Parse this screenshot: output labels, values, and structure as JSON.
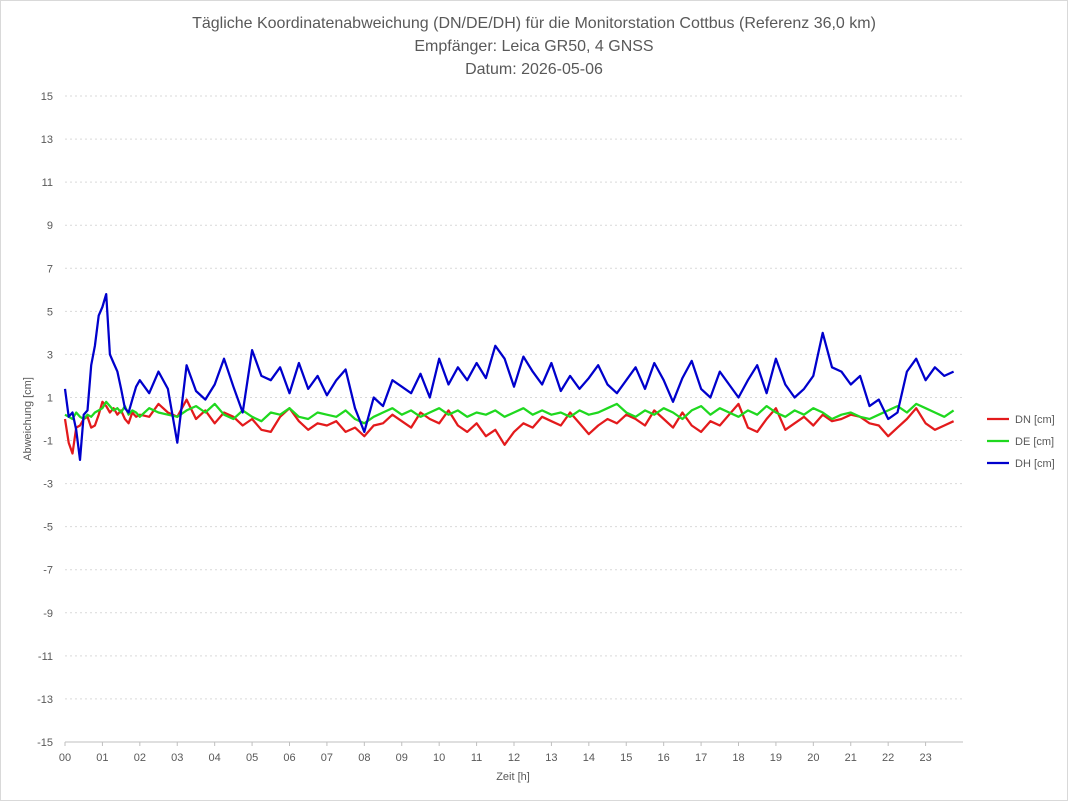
{
  "chart_data": {
    "type": "line",
    "title": [
      "Tägliche Koordinatenabweichung (DN/DE/DH) für die Monitorstation Cottbus (Referenz 36,0 km)",
      "Empfänger: Leica GR50, 4 GNSS",
      "Datum: 2026-05-06"
    ],
    "xlabel": "Zeit [h]",
    "ylabel": "Abweichung [cm]",
    "xlim": [
      0,
      24
    ],
    "ylim": [
      -15,
      15
    ],
    "x_ticks": [
      "00",
      "01",
      "02",
      "03",
      "04",
      "05",
      "06",
      "07",
      "08",
      "09",
      "10",
      "11",
      "12",
      "13",
      "14",
      "15",
      "16",
      "17",
      "18",
      "19",
      "20",
      "21",
      "22",
      "23"
    ],
    "y_ticks": [
      "15",
      "13",
      "11",
      "9",
      "7",
      "5",
      "3",
      "1",
      "-1",
      "-3",
      "-5",
      "-7",
      "-9",
      "-11",
      "-13",
      "-15"
    ],
    "grid": true,
    "legend_position": "right",
    "x_hours": [
      0.0,
      0.1,
      0.2,
      0.3,
      0.4,
      0.5,
      0.6,
      0.7,
      0.8,
      0.9,
      1.0,
      1.1,
      1.2,
      1.3,
      1.4,
      1.5,
      1.6,
      1.7,
      1.8,
      1.9,
      2.0,
      2.25,
      2.5,
      2.75,
      3.0,
      3.25,
      3.5,
      3.75,
      4.0,
      4.25,
      4.5,
      4.75,
      5.0,
      5.25,
      5.5,
      5.75,
      6.0,
      6.25,
      6.5,
      6.75,
      7.0,
      7.25,
      7.5,
      7.75,
      8.0,
      8.25,
      8.5,
      8.75,
      9.0,
      9.25,
      9.5,
      9.75,
      10.0,
      10.25,
      10.5,
      10.75,
      11.0,
      11.25,
      11.5,
      11.75,
      12.0,
      12.25,
      12.5,
      12.75,
      13.0,
      13.25,
      13.5,
      13.75,
      14.0,
      14.25,
      14.5,
      14.75,
      15.0,
      15.25,
      15.5,
      15.75,
      16.0,
      16.25,
      16.5,
      16.75,
      17.0,
      17.25,
      17.5,
      17.75,
      18.0,
      18.25,
      18.5,
      18.75,
      19.0,
      19.25,
      19.5,
      19.75,
      20.0,
      20.25,
      20.5,
      20.75,
      21.0,
      21.25,
      21.5,
      21.75,
      22.0,
      22.25,
      22.5,
      22.75,
      23.0,
      23.25,
      23.5,
      23.75
    ],
    "series": [
      {
        "name": "DN [cm]",
        "color": "#e31a1c",
        "values": [
          0.0,
          -1.1,
          -1.6,
          -0.4,
          -0.3,
          0.0,
          0.1,
          -0.4,
          -0.3,
          0.2,
          0.8,
          0.6,
          0.3,
          0.5,
          0.2,
          0.4,
          0.0,
          -0.2,
          0.3,
          0.1,
          0.2,
          0.1,
          0.7,
          0.3,
          0.1,
          0.9,
          0.0,
          0.4,
          -0.2,
          0.3,
          0.1,
          -0.3,
          0.0,
          -0.5,
          -0.6,
          0.1,
          0.5,
          -0.1,
          -0.5,
          -0.2,
          -0.3,
          -0.1,
          -0.6,
          -0.4,
          -0.8,
          -0.3,
          -0.2,
          0.2,
          -0.1,
          -0.4,
          0.3,
          0.0,
          -0.2,
          0.4,
          -0.3,
          -0.6,
          -0.2,
          -0.8,
          -0.5,
          -1.2,
          -0.6,
          -0.2,
          -0.4,
          0.1,
          -0.1,
          -0.3,
          0.3,
          -0.2,
          -0.7,
          -0.3,
          0.0,
          -0.2,
          0.2,
          0.0,
          -0.3,
          0.4,
          0.0,
          -0.4,
          0.3,
          -0.3,
          -0.6,
          -0.1,
          -0.3,
          0.2,
          0.7,
          -0.4,
          -0.6,
          0.0,
          0.5,
          -0.5,
          -0.2,
          0.1,
          -0.3,
          0.2,
          -0.1,
          0.0,
          0.2,
          0.1,
          -0.2,
          -0.3,
          -0.8,
          -0.4,
          0.0,
          0.5,
          -0.2,
          -0.5,
          -0.3,
          -0.1
        ]
      },
      {
        "name": "DE [cm]",
        "color": "#1fd81f",
        "values": [
          0.2,
          0.1,
          0.0,
          0.3,
          0.1,
          0.0,
          0.2,
          0.1,
          0.3,
          0.4,
          0.5,
          0.8,
          0.6,
          0.4,
          0.5,
          0.3,
          0.6,
          0.2,
          0.4,
          0.3,
          0.1,
          0.5,
          0.3,
          0.2,
          0.1,
          0.4,
          0.6,
          0.3,
          0.7,
          0.2,
          0.0,
          0.4,
          0.1,
          -0.1,
          0.3,
          0.2,
          0.5,
          0.1,
          0.0,
          0.3,
          0.2,
          0.1,
          0.4,
          0.0,
          -0.2,
          0.1,
          0.3,
          0.5,
          0.2,
          0.4,
          0.1,
          0.3,
          0.5,
          0.2,
          0.4,
          0.1,
          0.3,
          0.2,
          0.4,
          0.1,
          0.3,
          0.5,
          0.2,
          0.4,
          0.2,
          0.3,
          0.1,
          0.4,
          0.2,
          0.3,
          0.5,
          0.7,
          0.3,
          0.1,
          0.4,
          0.2,
          0.5,
          0.3,
          0.0,
          0.4,
          0.6,
          0.2,
          0.5,
          0.3,
          0.1,
          0.4,
          0.2,
          0.6,
          0.3,
          0.1,
          0.4,
          0.2,
          0.5,
          0.3,
          0.0,
          0.2,
          0.3,
          0.1,
          0.0,
          0.2,
          0.4,
          0.6,
          0.3,
          0.7,
          0.5,
          0.3,
          0.1,
          0.4
        ]
      },
      {
        "name": "DH [cm]",
        "color": "#0000cc",
        "values": [
          1.4,
          0.1,
          0.3,
          -0.5,
          -1.9,
          0.2,
          0.4,
          2.5,
          3.4,
          4.8,
          5.2,
          5.8,
          3.0,
          2.6,
          2.2,
          1.4,
          0.5,
          0.3,
          0.9,
          1.5,
          1.8,
          1.2,
          2.2,
          1.4,
          -1.1,
          2.5,
          1.3,
          0.9,
          1.6,
          2.8,
          1.5,
          0.3,
          3.2,
          2.0,
          1.8,
          2.4,
          1.2,
          2.6,
          1.4,
          2.0,
          1.1,
          1.8,
          2.3,
          0.5,
          -0.6,
          1.0,
          0.6,
          1.8,
          1.5,
          1.2,
          2.1,
          1.0,
          2.8,
          1.6,
          2.4,
          1.8,
          2.6,
          1.9,
          3.4,
          2.8,
          1.5,
          2.9,
          2.2,
          1.6,
          2.6,
          1.3,
          2.0,
          1.4,
          1.9,
          2.5,
          1.6,
          1.2,
          1.8,
          2.4,
          1.4,
          2.6,
          1.8,
          0.8,
          1.9,
          2.7,
          1.4,
          1.0,
          2.2,
          1.6,
          1.0,
          1.8,
          2.5,
          1.2,
          2.8,
          1.6,
          1.0,
          1.4,
          2.0,
          4.0,
          2.4,
          2.2,
          1.6,
          2.0,
          0.6,
          0.9,
          0.0,
          0.3,
          2.2,
          2.8,
          1.8,
          2.4,
          2.0,
          2.2
        ]
      }
    ]
  }
}
